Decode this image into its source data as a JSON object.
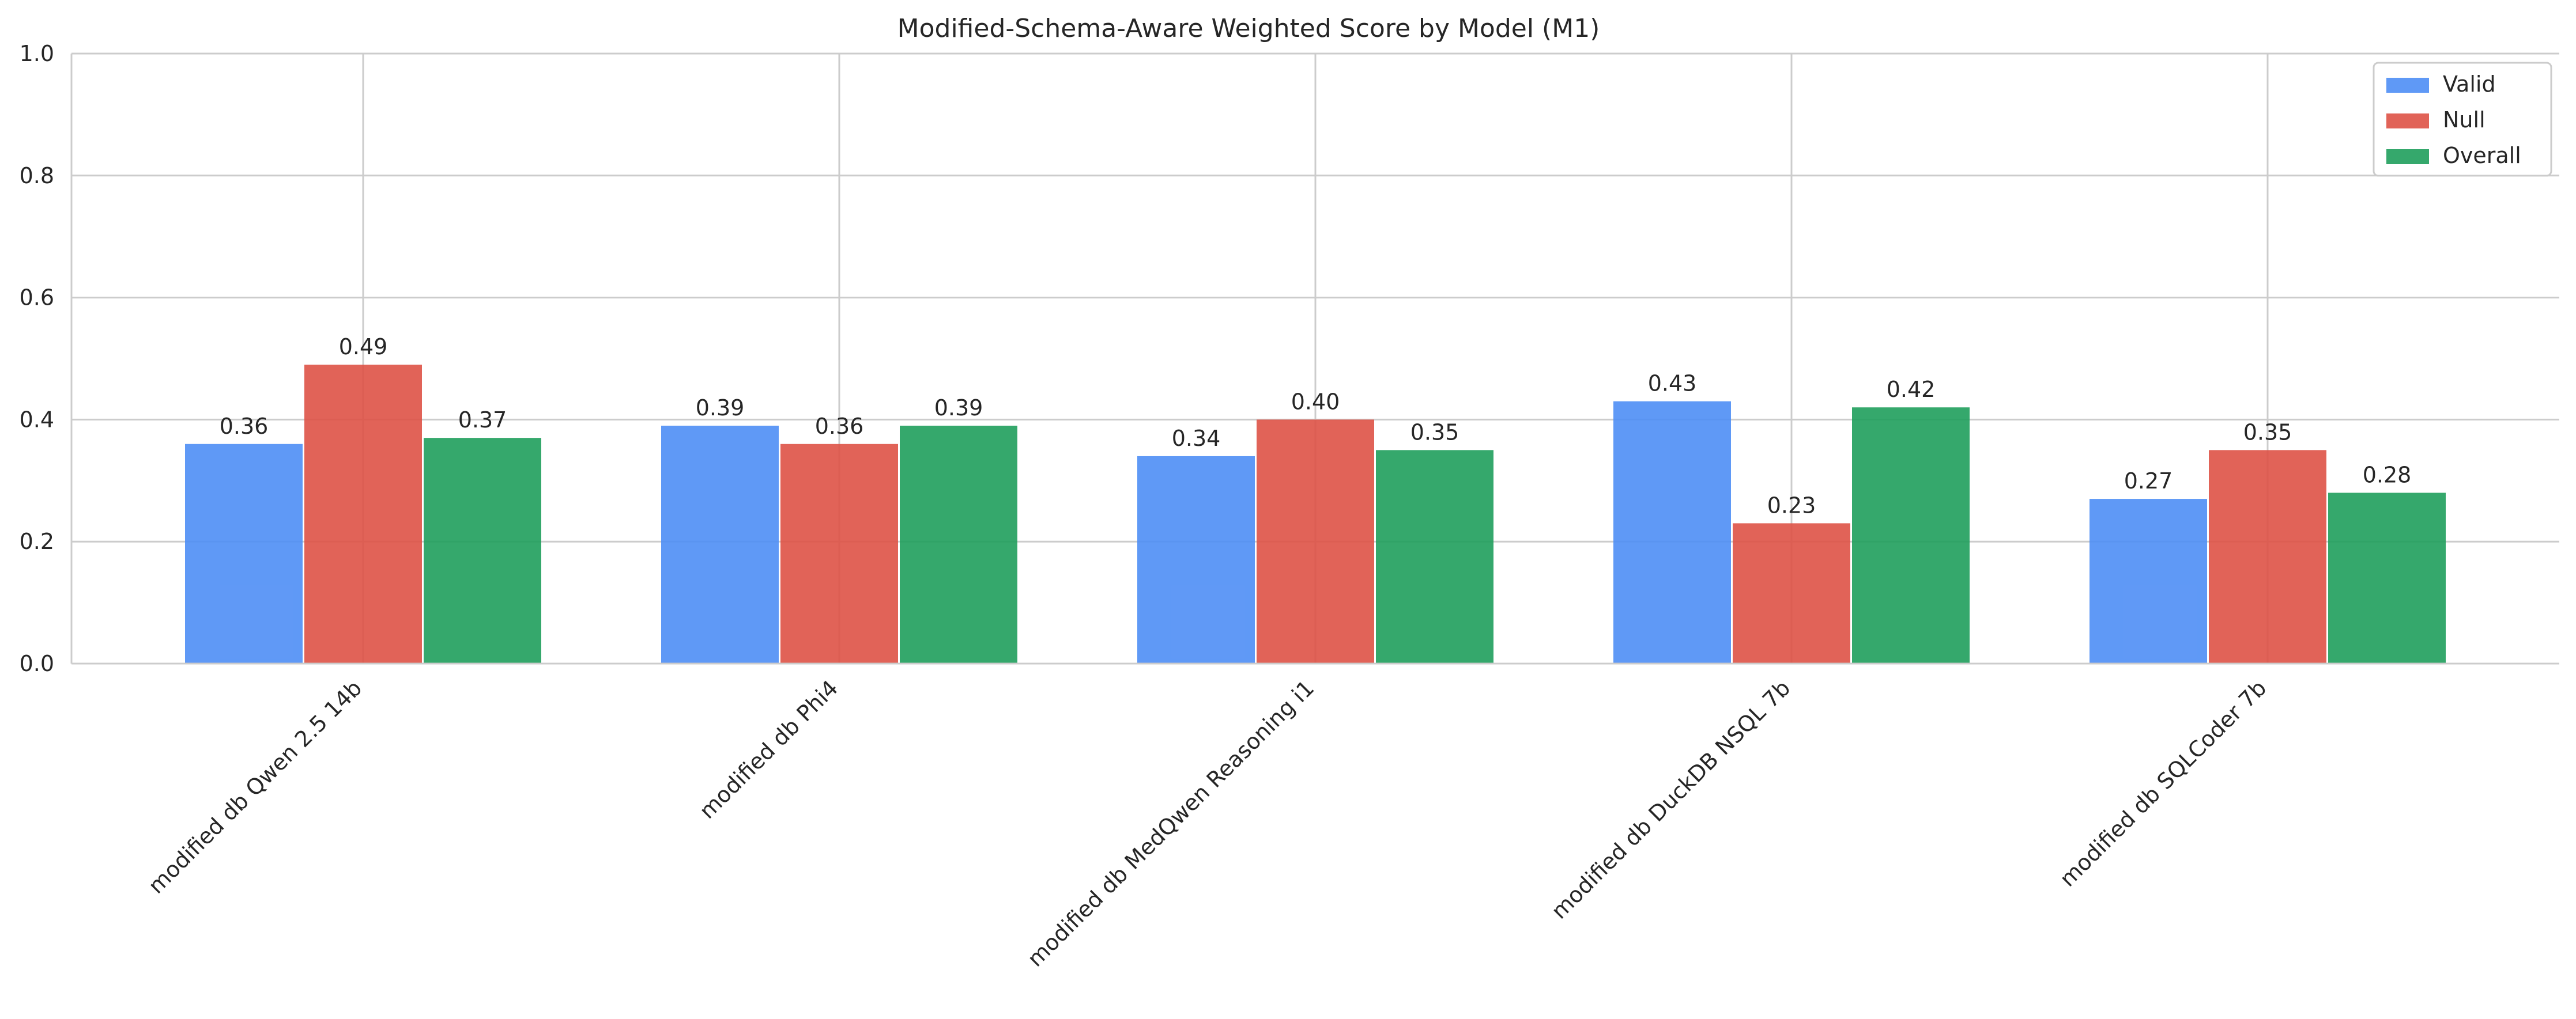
{
  "chart_data": {
    "type": "bar",
    "title": "Modified-Schema-Aware Weighted Score by Model (M1)",
    "xlabel": "",
    "ylabel": "",
    "ylim": [
      0,
      1.0
    ],
    "yticks": [
      "0.0",
      "0.2",
      "0.4",
      "0.6",
      "0.8",
      "1.0"
    ],
    "grid": true,
    "legend_position": "top-right",
    "categories": [
      "modified db Qwen 2.5 14b",
      "modified db Phi4",
      "modified db MedQwen Reasoning i1",
      "modified db DuckDB NSQL 7b",
      "modified db SQLCoder 7b"
    ],
    "series": [
      {
        "name": "Valid",
        "color": "#4e8ef5",
        "values": [
          0.36,
          0.39,
          0.34,
          0.43,
          0.27
        ],
        "labels": [
          "0.36",
          "0.39",
          "0.34",
          "0.43",
          "0.27"
        ]
      },
      {
        "name": "Null",
        "color": "#de5246",
        "values": [
          0.49,
          0.36,
          0.4,
          0.23,
          0.35
        ],
        "labels": [
          "0.49",
          "0.36",
          "0.40",
          "0.23",
          "0.35"
        ]
      },
      {
        "name": "Overall",
        "color": "#1f9e5c",
        "values": [
          0.37,
          0.39,
          0.35,
          0.42,
          0.28
        ],
        "labels": [
          "0.37",
          "0.39",
          "0.35",
          "0.42",
          "0.28"
        ]
      }
    ]
  }
}
